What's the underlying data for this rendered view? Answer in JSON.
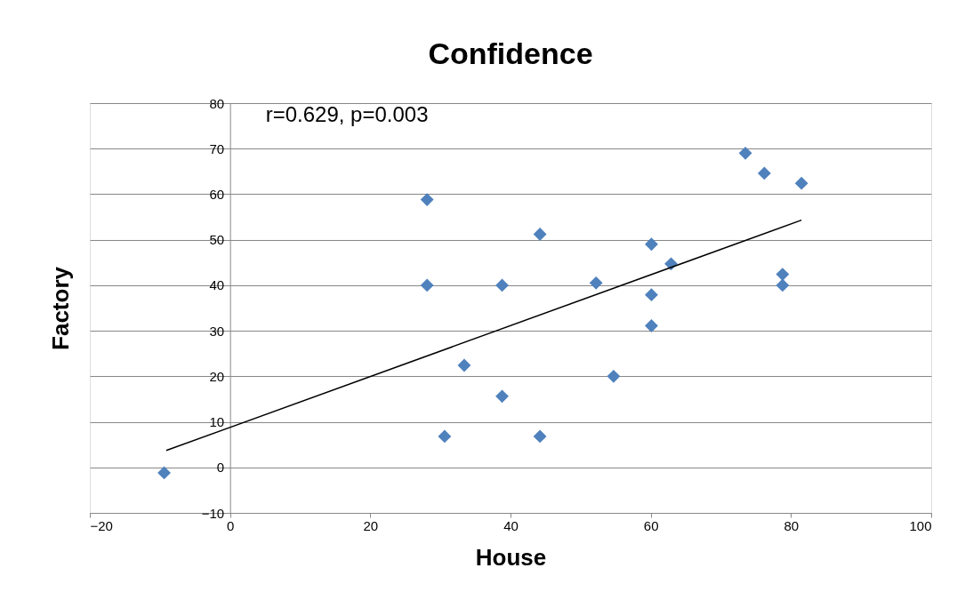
{
  "chart_data": {
    "type": "scatter",
    "title": "Confidence",
    "xlabel": "House",
    "ylabel": "Factory",
    "annotations": [
      "r=0.629, p=0.003"
    ],
    "xlim": [
      -20,
      100
    ],
    "xticks": [
      -20,
      0,
      20,
      40,
      60,
      80,
      100
    ],
    "ylim": [
      -10,
      80
    ],
    "yticks": [
      -10,
      0,
      10,
      20,
      30,
      40,
      50,
      60,
      70,
      80
    ],
    "grid": "y",
    "marker": "diamond",
    "series": [
      {
        "type": "scatter",
        "color": "#4f81bd",
        "x": [
          -9.4,
          28.1,
          28.1,
          30.6,
          33.4,
          38.8,
          38.8,
          44.2,
          44.2,
          52.2,
          54.7,
          60.1,
          60.1,
          60.1,
          62.9,
          73.5,
          76.2,
          78.8,
          78.8,
          81.5
        ],
        "values": [
          -1.2,
          58.8,
          40,
          6.8,
          22.4,
          40,
          15.6,
          51.2,
          6.8,
          40.5,
          20,
          49,
          37.9,
          31.1,
          44.7,
          69,
          64.6,
          42.4,
          40,
          62.4
        ]
      },
      {
        "type": "line",
        "marker": "none",
        "color": "#000000",
        "x": [
          -9.1,
          81.5
        ],
        "values": [
          3.7,
          54.3
        ]
      }
    ]
  }
}
